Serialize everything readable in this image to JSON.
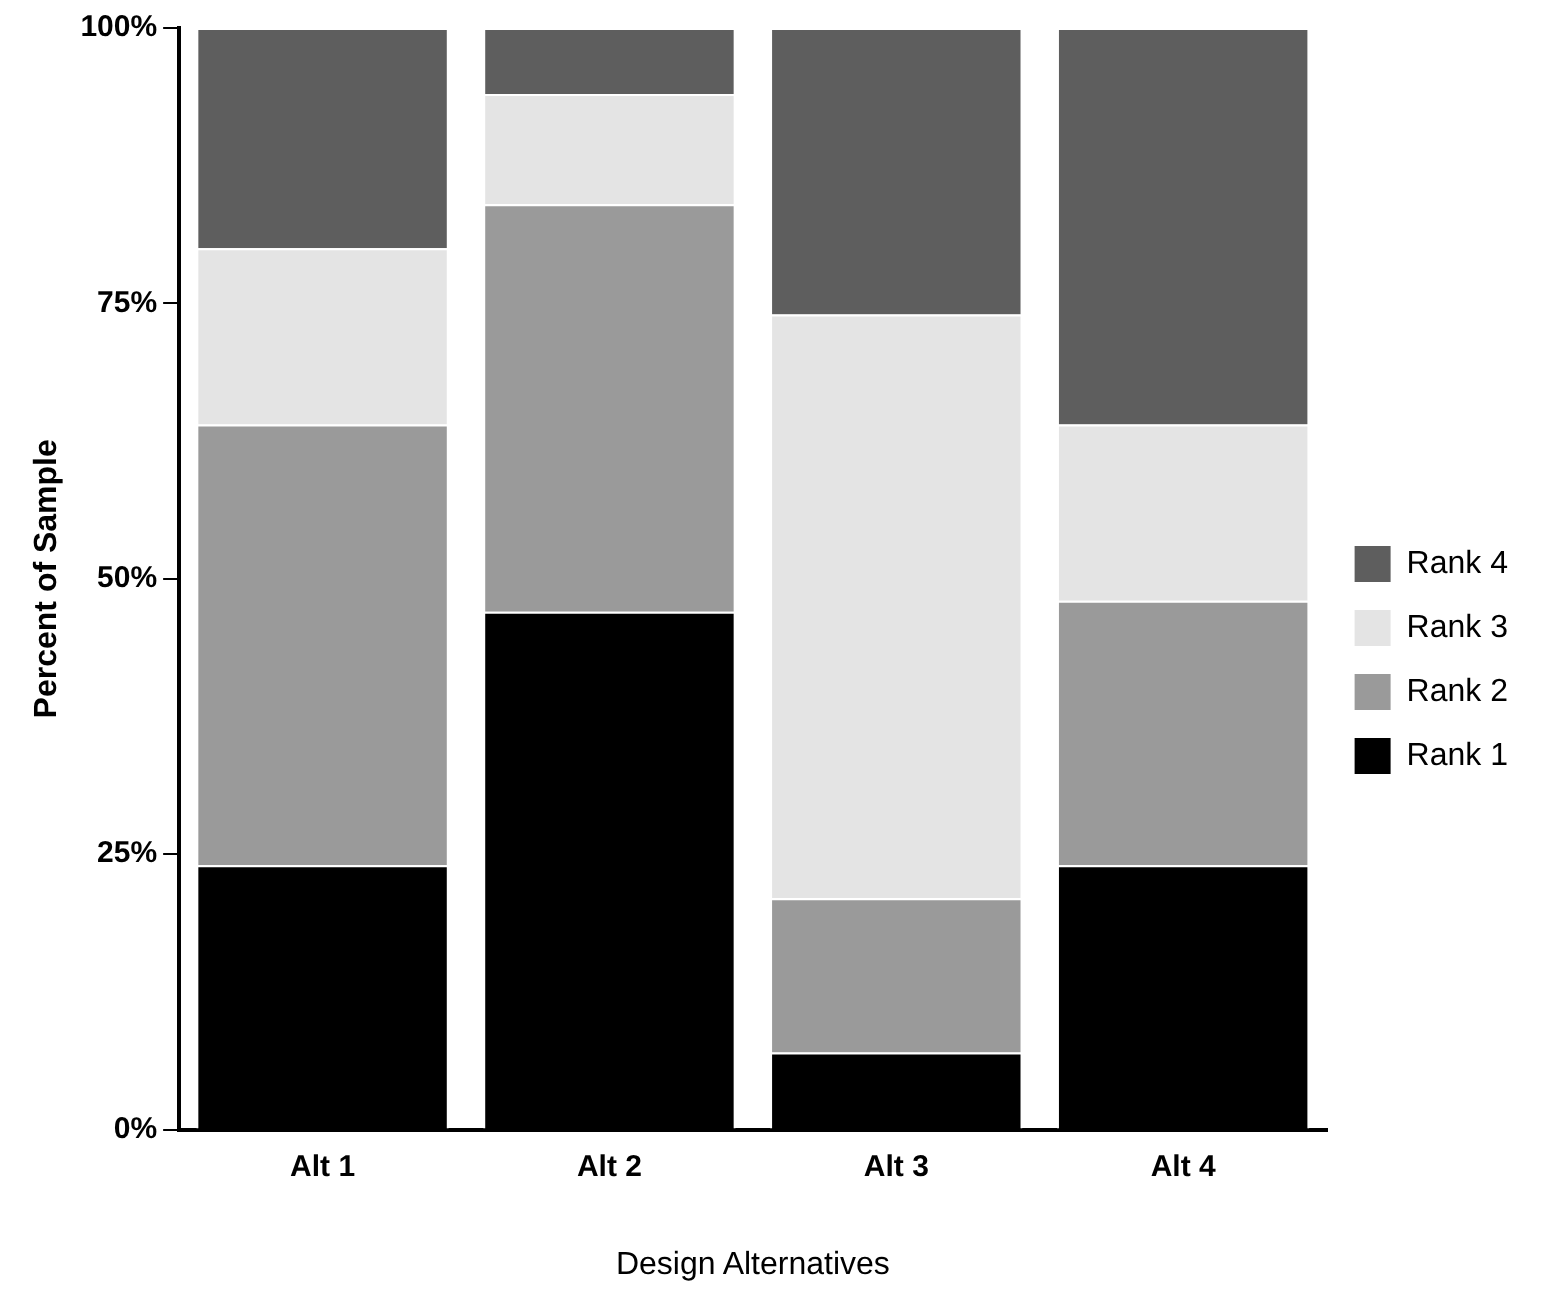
{
  "chart_data": {
    "type": "bar",
    "stacked": true,
    "xlabel": "Design Alternatives",
    "ylabel": "Percent of Sample",
    "categories": [
      "Alt 1",
      "Alt 2",
      "Alt 3",
      "Alt 4"
    ],
    "series": [
      {
        "name": "Rank 1",
        "color": "#000000",
        "values": [
          24,
          47,
          7,
          24
        ]
      },
      {
        "name": "Rank 2",
        "color": "#9a9a9a",
        "values": [
          40,
          37,
          14,
          24
        ]
      },
      {
        "name": "Rank 3",
        "color": "#e4e4e4",
        "values": [
          16,
          10,
          53,
          16
        ]
      },
      {
        "name": "Rank 4",
        "color": "#5e5e5e",
        "values": [
          20,
          6,
          26,
          36
        ]
      }
    ],
    "ylim": [
      0,
      100
    ],
    "yticks": [
      {
        "value": 0,
        "label": "0%"
      },
      {
        "value": 25,
        "label": "25%"
      },
      {
        "value": 50,
        "label": "50%"
      },
      {
        "value": 75,
        "label": "75%"
      },
      {
        "value": 100,
        "label": "100%"
      }
    ],
    "grid": false,
    "legend": "right"
  }
}
